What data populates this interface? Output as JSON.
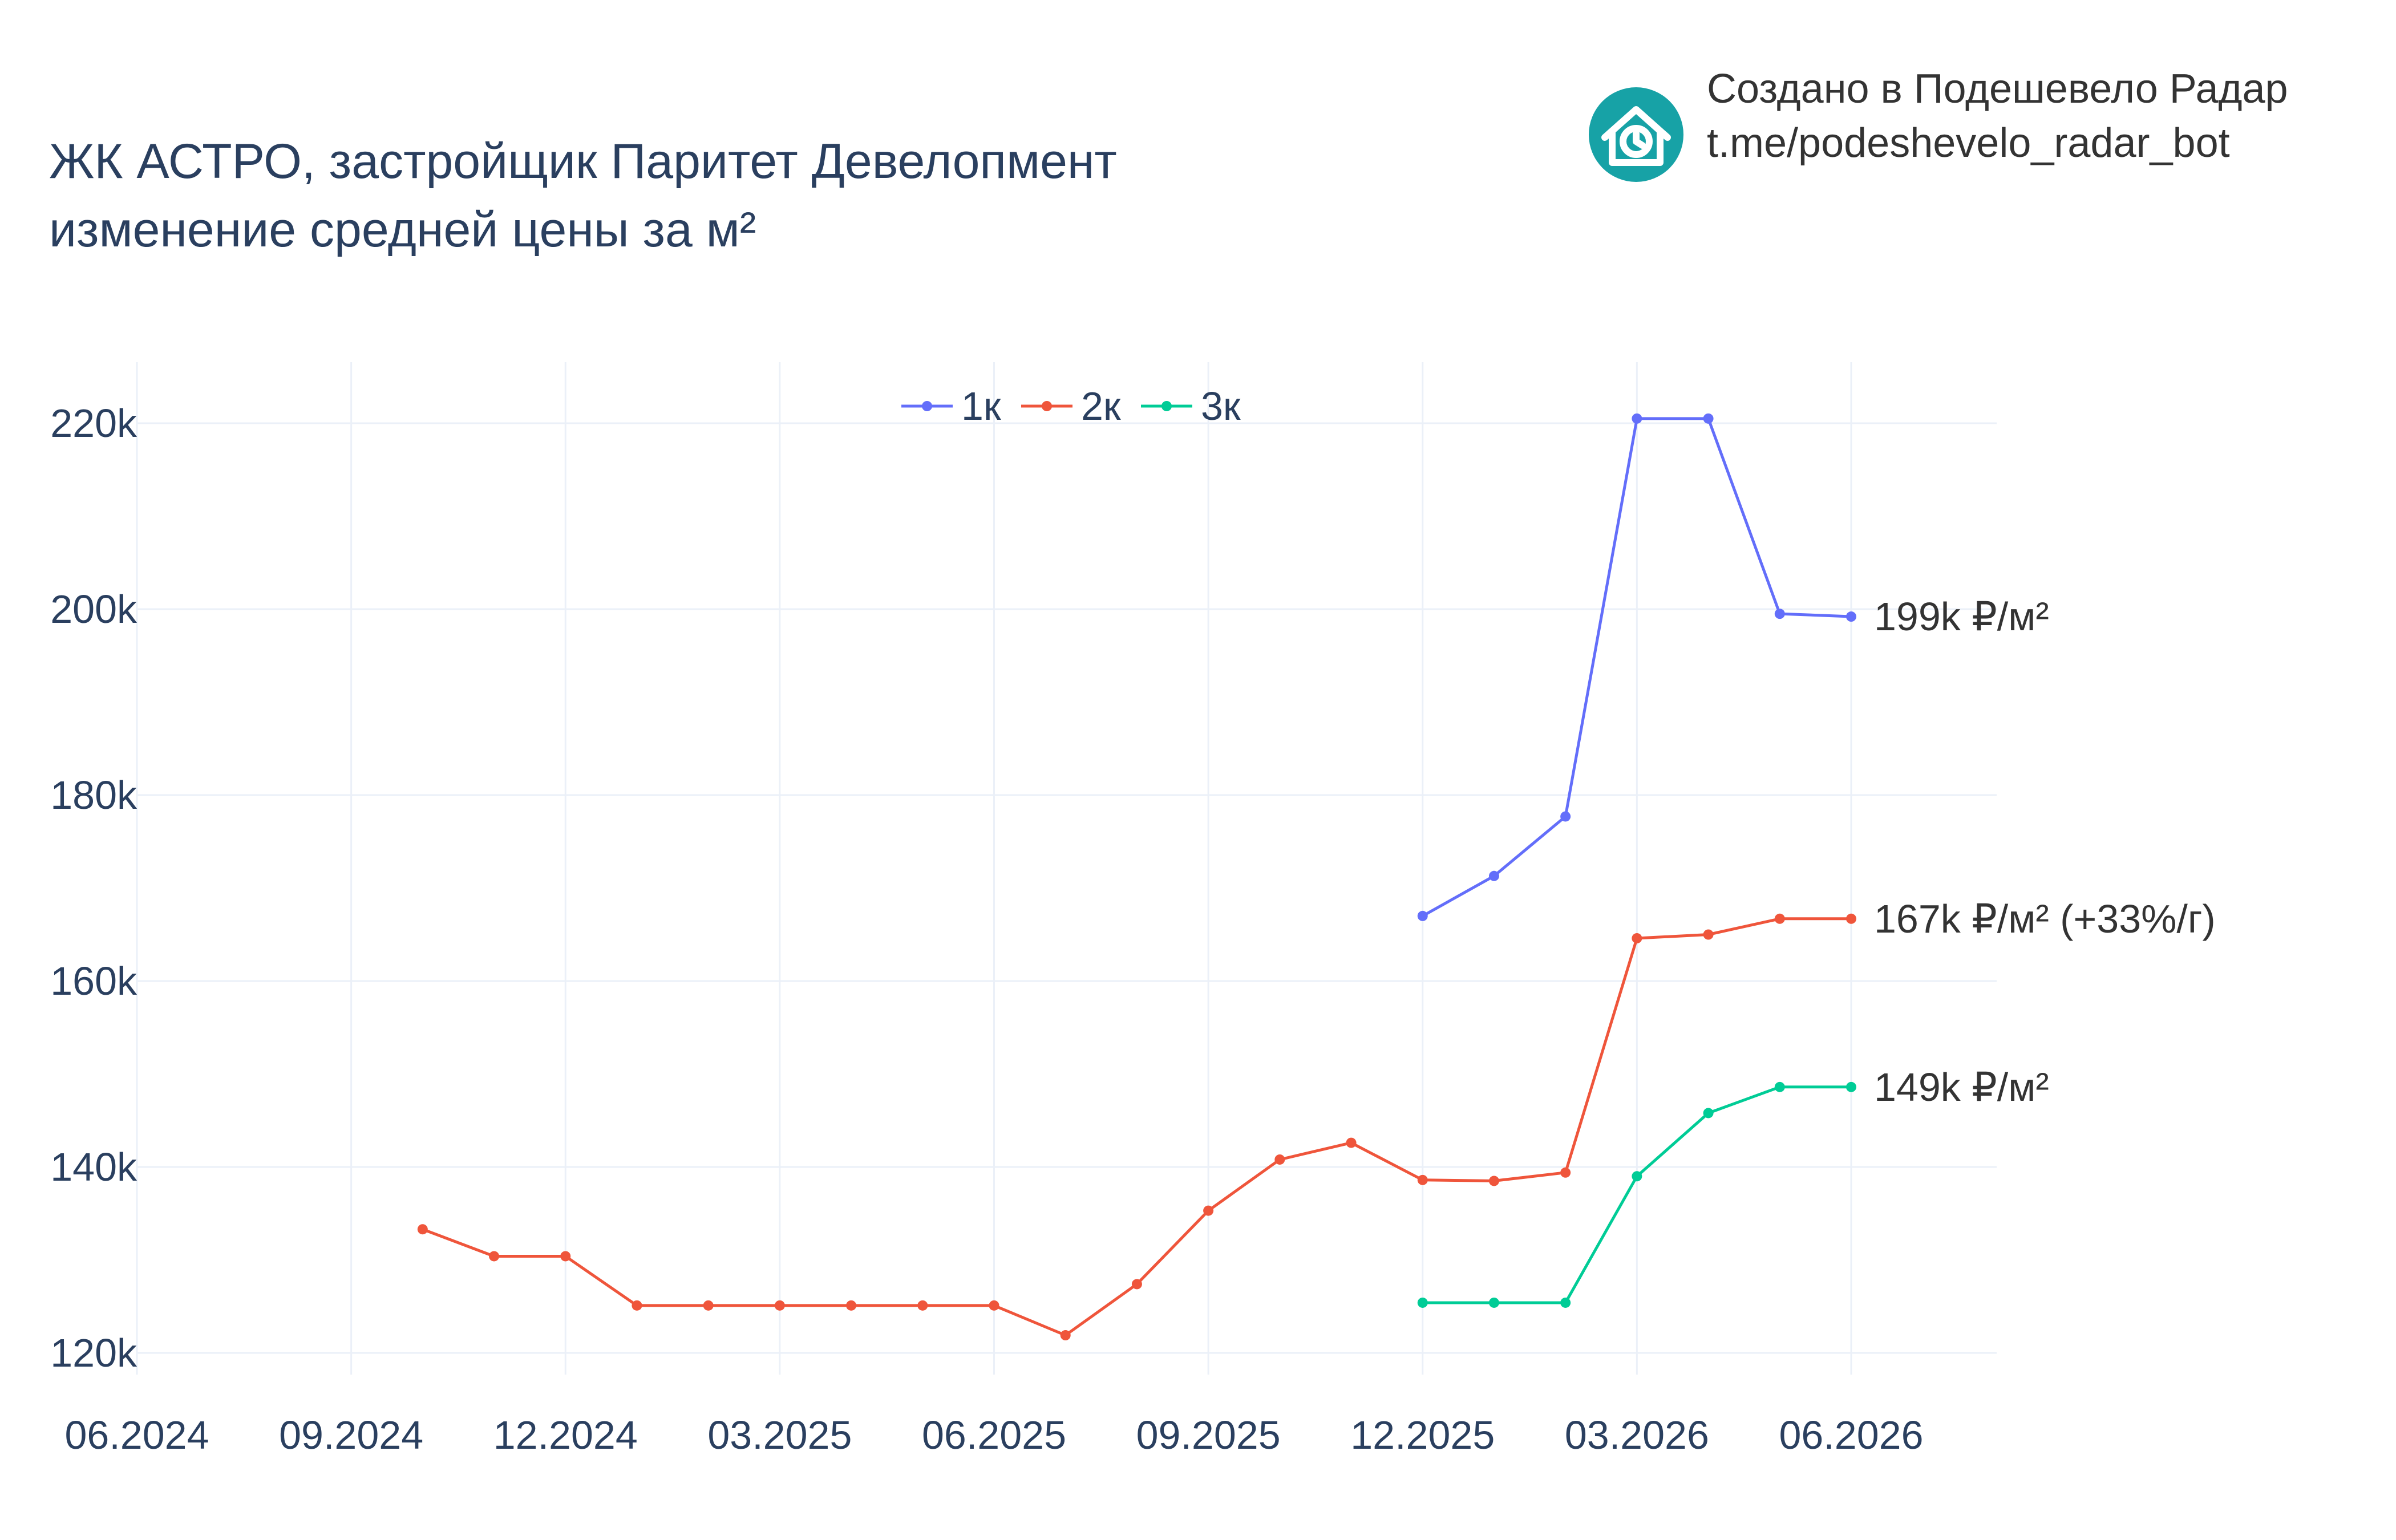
{
  "title_line1": "ЖК АСТРО, застройщик Паритет Девелопмент",
  "title_line2": "изменение средней цены за м²",
  "brand": {
    "line1": "Создано в Подешевело Радар",
    "line2": "t.me/podeshevelo_radar_bot",
    "icon": "house-clock-icon",
    "color": "#17a2a6"
  },
  "chart_data": {
    "type": "line",
    "x_ticks": [
      "06.2024",
      "09.2024",
      "12.2024",
      "03.2025",
      "06.2025",
      "09.2025",
      "12.2025",
      "03.2026",
      "06.2026"
    ],
    "y_ticks": [
      "120k",
      "140k",
      "160k",
      "180k",
      "200k",
      "220k"
    ],
    "ylim": [
      115000,
      227000
    ],
    "grid": true,
    "legend_position": "top-center",
    "series": [
      {
        "name": "1к",
        "color": "#636efa",
        "x": [
          "2025-12",
          "2026-01",
          "2026-02",
          "2026-03",
          "2026-04",
          "2026-05",
          "2026-06"
        ],
        "y": [
          167000,
          171300,
          177700,
          220500,
          220500,
          199500,
          199200
        ],
        "end_label": "199k ₽/м²"
      },
      {
        "name": "2к",
        "color": "#ef553b",
        "x": [
          "2024-10",
          "2024-11",
          "2024-12",
          "2025-01",
          "2025-02",
          "2025-03",
          "2025-04",
          "2025-05",
          "2025-06",
          "2025-07",
          "2025-08",
          "2025-09",
          "2025-10",
          "2025-11",
          "2025-12",
          "2026-01",
          "2026-02",
          "2026-03",
          "2026-04",
          "2026-05",
          "2026-06"
        ],
        "y": [
          133300,
          130400,
          130400,
          125100,
          125100,
          125100,
          125100,
          125100,
          125100,
          121900,
          127400,
          135300,
          140800,
          142600,
          138600,
          138500,
          139400,
          164600,
          165000,
          166700,
          166700
        ],
        "end_label": "167k ₽/м² (+33%/г)"
      },
      {
        "name": "3к",
        "color": "#00cc96",
        "x": [
          "2025-12",
          "2026-01",
          "2026-02",
          "2026-03",
          "2026-04",
          "2026-05",
          "2026-06"
        ],
        "y": [
          125400,
          125400,
          125400,
          139000,
          145800,
          148600,
          148600
        ],
        "end_label": "149k ₽/м²"
      }
    ]
  }
}
